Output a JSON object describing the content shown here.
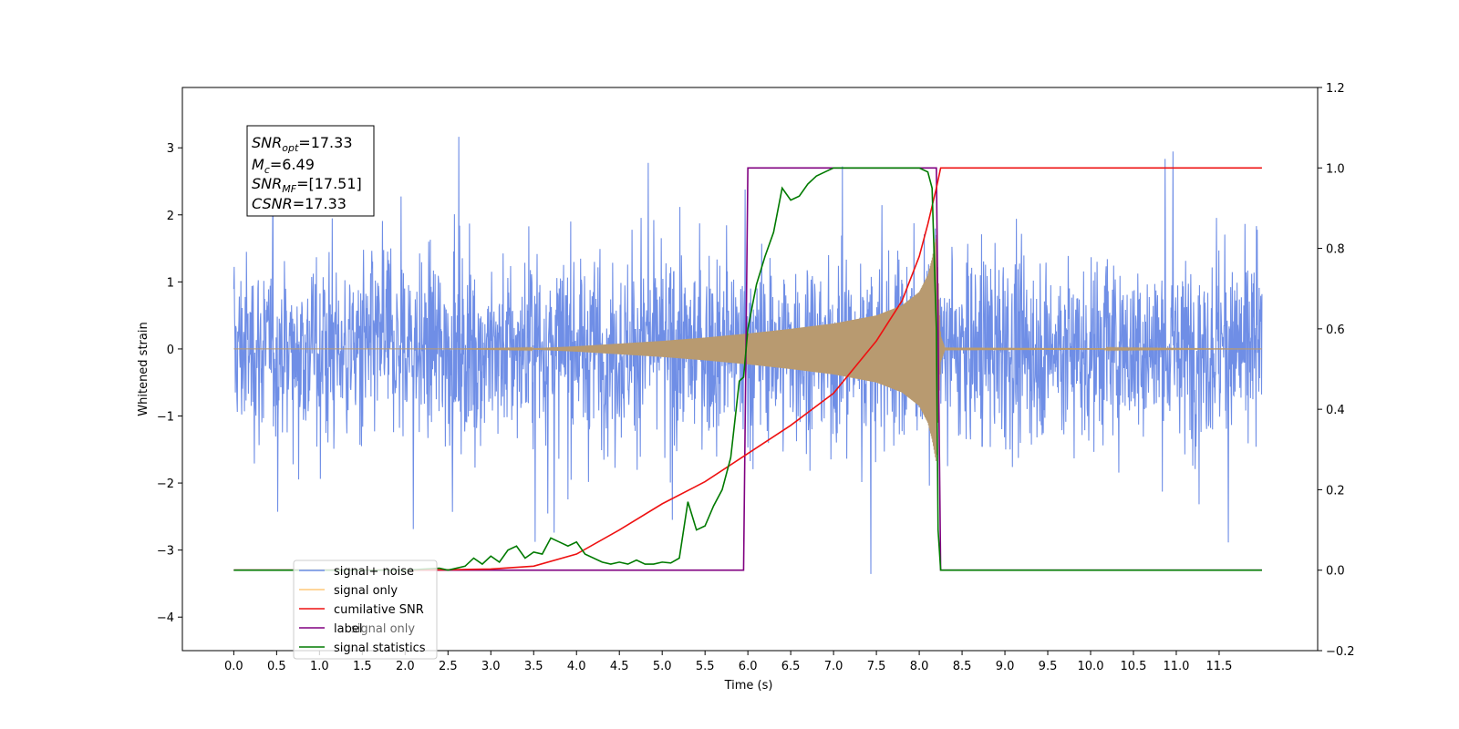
{
  "chart_data": {
    "type": "line",
    "xlabel": "Time (s)",
    "ylabel": "Whitened strain",
    "xlim": [
      -0.6,
      12.65
    ],
    "ylim": [
      -4.5,
      3.9
    ],
    "y2lim": [
      -0.2,
      1.2
    ],
    "x_ticks": [
      0.0,
      0.5,
      1.0,
      1.5,
      2.0,
      2.5,
      3.0,
      3.5,
      4.0,
      4.5,
      5.0,
      5.5,
      6.0,
      6.5,
      7.0,
      7.5,
      8.0,
      8.5,
      9.0,
      9.5,
      10.0,
      10.5,
      11.0,
      11.5
    ],
    "x_tick_labels": [
      "0.0",
      "0.5",
      "1.0",
      "1.5",
      "2.0",
      "2.5",
      "3.0",
      "3.5",
      "4.0",
      "4.5",
      "5.0",
      "5.5",
      "6.0",
      "6.5",
      "7.0",
      "7.5",
      "8.0",
      "8.5",
      "9.0",
      "9.5",
      "10.0",
      "10.5",
      "11.0",
      "11.5"
    ],
    "y_ticks": [
      3,
      2,
      1,
      0,
      -1,
      -2,
      -3,
      -4
    ],
    "y_tick_labels": [
      "3",
      "2",
      "1",
      "0",
      "−1",
      "−2",
      "−3",
      "−4"
    ],
    "y2_ticks": [
      1.2,
      1.0,
      0.8,
      0.6,
      0.4,
      0.2,
      0.0,
      -0.2
    ],
    "y2_tick_labels": [
      "1.2",
      "1.0",
      "0.8",
      "0.6",
      "0.4",
      "0.2",
      "0.0",
      "−0.2"
    ],
    "grid": false,
    "legend_position": "bottom-left",
    "colors": {
      "signal_noise": "#6f8ee6",
      "signal_only": "#ffc878",
      "signal_overlap": "#b89a70",
      "cumulative_snr": "#ee1111",
      "label": "#800080",
      "signal_statistics": "#007a00"
    },
    "series": [
      {
        "name": "signal+ noise",
        "axis": "left",
        "x_range": [
          0.0,
          12.0
        ],
        "description_values": {
          "peak_abs_amplitude": 3.5,
          "typical_band": [
            -2.5,
            2.5
          ]
        }
      },
      {
        "name": "signal only",
        "axis": "left",
        "envelope": {
          "x": [
            0.0,
            2.5,
            3.5,
            4.0,
            4.5,
            5.0,
            5.5,
            6.0,
            6.5,
            7.0,
            7.5,
            7.8,
            8.0,
            8.1,
            8.15,
            8.2,
            8.25,
            8.3,
            12.0
          ],
          "amplitude": [
            0.0,
            0.0,
            0.01,
            0.04,
            0.08,
            0.12,
            0.17,
            0.23,
            0.3,
            0.38,
            0.5,
            0.65,
            0.85,
            1.1,
            1.35,
            1.7,
            0.2,
            0.02,
            0.0
          ]
        }
      },
      {
        "name": "cumilative SNR",
        "axis": "right",
        "x": [
          0.0,
          2.0,
          2.5,
          3.0,
          3.5,
          4.0,
          4.5,
          5.0,
          5.5,
          6.0,
          6.5,
          7.0,
          7.5,
          7.8,
          8.0,
          8.1,
          8.2,
          8.25,
          12.0
        ],
        "values": [
          0.0,
          0.0,
          0.001,
          0.003,
          0.01,
          0.04,
          0.1,
          0.165,
          0.22,
          0.29,
          0.36,
          0.44,
          0.57,
          0.67,
          0.78,
          0.86,
          0.95,
          1.0,
          1.0
        ]
      },
      {
        "name": "label",
        "axis": "right",
        "x": [
          0.0,
          5.95,
          6.0,
          8.2,
          8.25,
          12.0
        ],
        "values": [
          0.0,
          0.0,
          1.0,
          1.0,
          0.0,
          0.0
        ]
      },
      {
        "name": "signal statistics",
        "axis": "right",
        "x": [
          0.0,
          2.0,
          2.4,
          2.5,
          2.7,
          2.8,
          2.9,
          3.0,
          3.1,
          3.2,
          3.3,
          3.4,
          3.5,
          3.6,
          3.7,
          3.8,
          3.9,
          4.0,
          4.1,
          4.3,
          4.4,
          4.5,
          4.6,
          4.7,
          4.8,
          4.9,
          5.0,
          5.1,
          5.2,
          5.3,
          5.4,
          5.5,
          5.6,
          5.7,
          5.8,
          5.9,
          5.95,
          6.0,
          6.1,
          6.2,
          6.3,
          6.4,
          6.5,
          6.6,
          6.7,
          6.8,
          6.9,
          7.0,
          7.5,
          8.0,
          8.1,
          8.15,
          8.2,
          8.22,
          8.25,
          12.0
        ],
        "values": [
          0.0,
          0.0,
          0.005,
          0.0,
          0.01,
          0.03,
          0.015,
          0.035,
          0.02,
          0.05,
          0.06,
          0.03,
          0.045,
          0.04,
          0.08,
          0.07,
          0.06,
          0.07,
          0.04,
          0.02,
          0.015,
          0.02,
          0.015,
          0.025,
          0.015,
          0.015,
          0.02,
          0.018,
          0.03,
          0.17,
          0.1,
          0.11,
          0.16,
          0.2,
          0.28,
          0.47,
          0.48,
          0.6,
          0.71,
          0.78,
          0.84,
          0.95,
          0.92,
          0.93,
          0.96,
          0.98,
          0.99,
          1.0,
          1.0,
          1.0,
          0.99,
          0.95,
          0.6,
          0.1,
          0.0,
          0.0
        ]
      }
    ],
    "legend_items": [
      "signal+ noise",
      "signal only",
      "cumilative SNR",
      "label",
      "signal statistics"
    ],
    "legend_hidden_text": "signal only",
    "stats": {
      "snr_opt": {
        "base": "SNR",
        "sub": "opt",
        "value": "=17.33"
      },
      "mc": {
        "base": "M",
        "sub": "c",
        "value": "=6.49"
      },
      "snr_mf": {
        "base": "SNR",
        "sub": "MF",
        "value": "=[17.51]"
      },
      "csnr": {
        "base": "CSNR",
        "sub": "",
        "value": "=17.33"
      }
    }
  }
}
